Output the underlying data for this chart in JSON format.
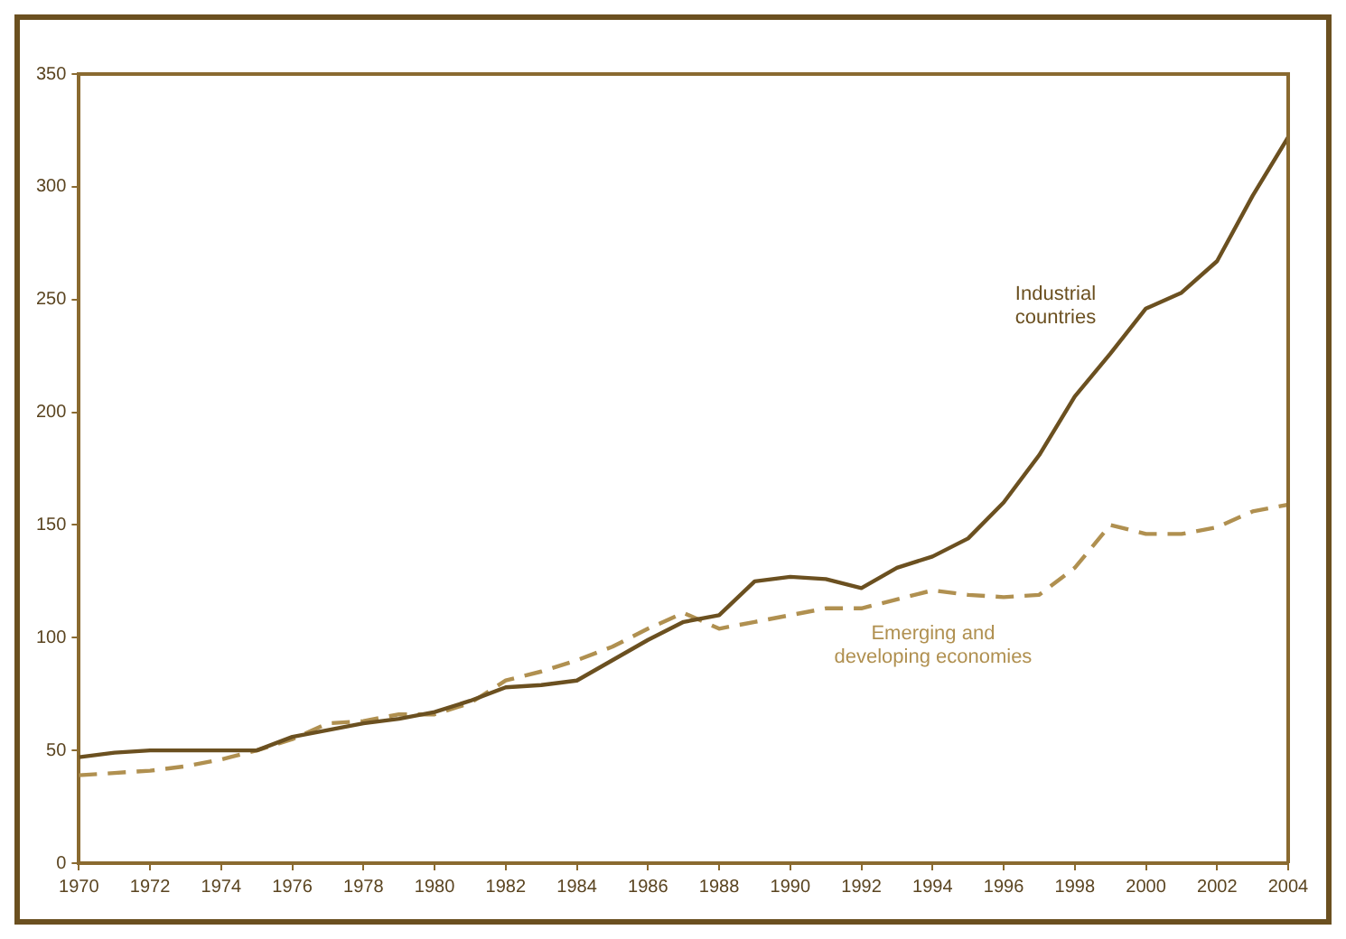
{
  "chart_data": {
    "type": "line",
    "x": [
      1970,
      1971,
      1972,
      1973,
      1974,
      1975,
      1976,
      1977,
      1978,
      1979,
      1980,
      1981,
      1982,
      1983,
      1984,
      1985,
      1986,
      1987,
      1988,
      1989,
      1990,
      1991,
      1992,
      1993,
      1994,
      1995,
      1996,
      1997,
      1998,
      1999,
      2000,
      2001,
      2002,
      2003,
      2004
    ],
    "series": [
      {
        "name": "Industrial countries",
        "color": "#6b5020",
        "line_style": "solid",
        "values": [
          47,
          49,
          50,
          50,
          50,
          50,
          56,
          59,
          62,
          64,
          67,
          72,
          78,
          79,
          81,
          90,
          99,
          107,
          110,
          125,
          127,
          126,
          122,
          131,
          136,
          144,
          160,
          181,
          207,
          226,
          246,
          253,
          267,
          296,
          322
        ]
      },
      {
        "name": "Emerging and developing economies",
        "color": "#b09050",
        "line_style": "dashed",
        "values": [
          39,
          40,
          41,
          43,
          46,
          50,
          55,
          62,
          63,
          66,
          66,
          71,
          81,
          85,
          90,
          96,
          104,
          111,
          104,
          107,
          110,
          113,
          113,
          117,
          121,
          119,
          118,
          119,
          131,
          150,
          146,
          146,
          149,
          156,
          159
        ]
      }
    ],
    "xlim": [
      1970,
      2004
    ],
    "xticks": [
      1970,
      1972,
      1974,
      1976,
      1978,
      1980,
      1982,
      1984,
      1986,
      1988,
      1990,
      1992,
      1994,
      1996,
      1998,
      2000,
      2002,
      2004
    ],
    "ylim": [
      0,
      350
    ],
    "yticks": [
      0,
      50,
      100,
      150,
      200,
      250,
      300,
      350
    ],
    "grid": false,
    "legend": false,
    "marker": "none"
  }
}
